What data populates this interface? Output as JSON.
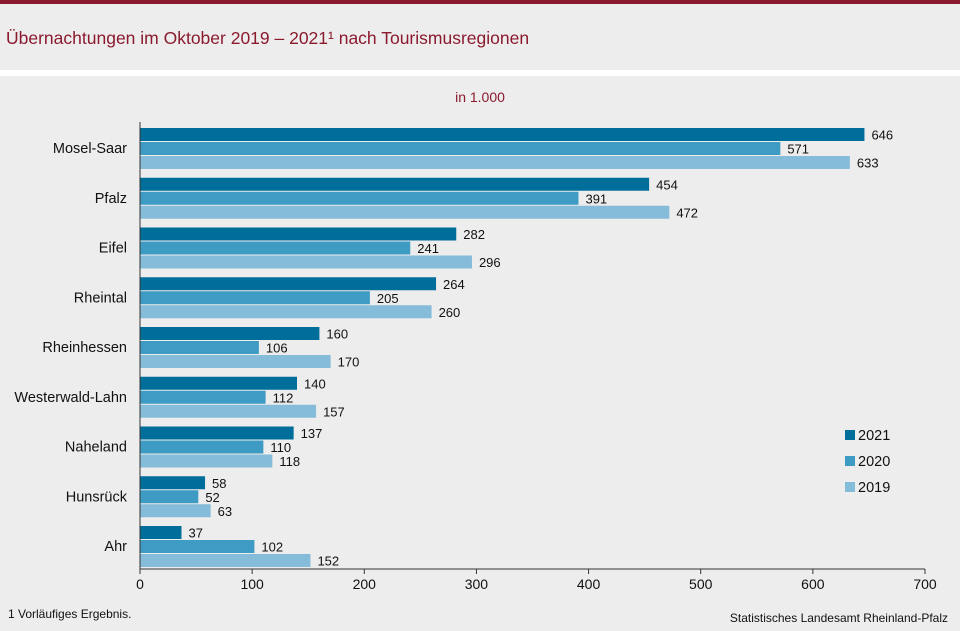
{
  "header": {
    "title": "Übernachtungen im Oktober 2019 – 2021¹ nach Tourismusregionen"
  },
  "chart_data": {
    "type": "bar",
    "orientation": "horizontal",
    "subtitle": "in 1.000",
    "categories": [
      "Mosel-Saar",
      "Pfalz",
      "Eifel",
      "Rheintal",
      "Rheinhessen",
      "Westerwald-Lahn",
      "Naheland",
      "Hunsrück",
      "Ahr"
    ],
    "series": [
      {
        "name": "2021",
        "color": "#006e9b",
        "values": [
          646,
          454,
          282,
          264,
          160,
          140,
          137,
          58,
          37
        ]
      },
      {
        "name": "2020",
        "color": "#3d9bc4",
        "values": [
          571,
          391,
          241,
          205,
          106,
          112,
          110,
          52,
          102
        ]
      },
      {
        "name": "2019",
        "color": "#85bcd9",
        "values": [
          633,
          472,
          296,
          260,
          170,
          157,
          118,
          63,
          152
        ]
      }
    ],
    "xlim": [
      0,
      700
    ],
    "xticks": [
      "0",
      "100",
      "200",
      "300",
      "400",
      "500",
      "600",
      "700"
    ],
    "grid": false,
    "legend_position": "right"
  },
  "footer": {
    "footnote": "1 Vorläufiges Ergebnis.",
    "source": "Statistisches Landesamt Rheinland-Pfalz"
  }
}
